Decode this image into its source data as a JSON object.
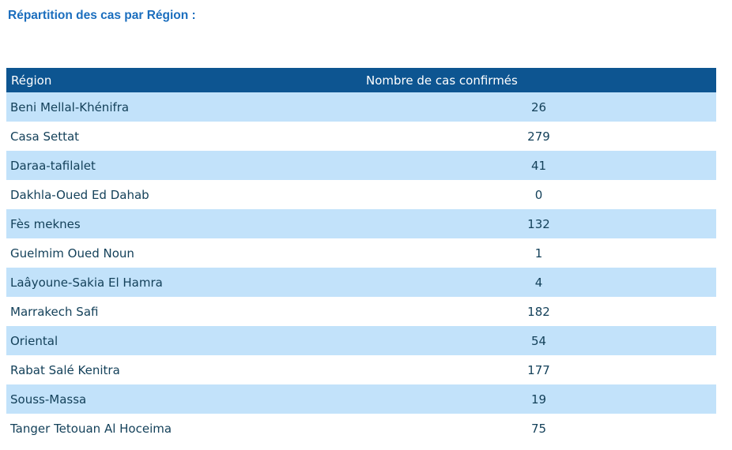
{
  "page": {
    "title": "Répartition des cas par Région :"
  },
  "table": {
    "columns": [
      {
        "label": "Région"
      },
      {
        "label": "Nombre de cas confirmés"
      }
    ],
    "rows": [
      {
        "region": "Beni Mellal-Khénifra",
        "cases": "26"
      },
      {
        "region": "Casa Settat",
        "cases": "279"
      },
      {
        "region": "Daraa-tafilalet",
        "cases": "41"
      },
      {
        "region": "Dakhla-Oued Ed Dahab",
        "cases": "0"
      },
      {
        "region": "Fès meknes",
        "cases": "132"
      },
      {
        "region": "Guelmim Oued Noun",
        "cases": "1"
      },
      {
        "region": "Laâyoune-Sakia El Hamra",
        "cases": "4"
      },
      {
        "region": "Marrakech Safi",
        "cases": "182"
      },
      {
        "region": "Oriental",
        "cases": "54"
      },
      {
        "region": "Rabat Salé Kenitra",
        "cases": "177"
      },
      {
        "region": "Souss-Massa",
        "cases": "19"
      },
      {
        "region": "Tanger Tetouan Al Hoceima",
        "cases": "75"
      }
    ]
  },
  "colors": {
    "header_bg": "#0d5591",
    "header_text": "#ffffff",
    "row_alt_bg": "#c2e2fa",
    "row_bg": "#ffffff",
    "body_text": "#14415a",
    "title_text": "#1b6ebe"
  },
  "chart_data": {
    "type": "table",
    "title": "Répartition des cas par Région :",
    "columns": [
      "Région",
      "Nombre de cas confirmés"
    ],
    "categories": [
      "Beni Mellal-Khénifra",
      "Casa Settat",
      "Daraa-tafilalet",
      "Dakhla-Oued Ed Dahab",
      "Fès meknes",
      "Guelmim Oued Noun",
      "Laâyoune-Sakia El Hamra",
      "Marrakech Safi",
      "Oriental",
      "Rabat Salé Kenitra",
      "Souss-Massa",
      "Tanger Tetouan Al Hoceima"
    ],
    "values": [
      26,
      279,
      41,
      0,
      132,
      1,
      4,
      182,
      54,
      177,
      19,
      75
    ]
  }
}
